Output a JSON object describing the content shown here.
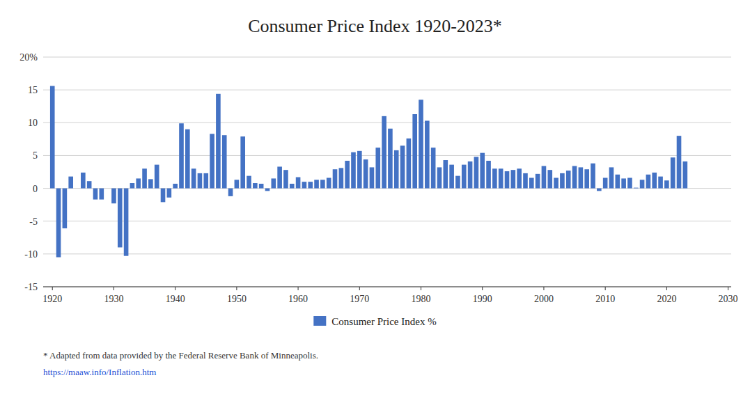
{
  "chart_data": {
    "type": "bar",
    "title": "Consumer Price Index 1920-2023*",
    "x": [
      1920,
      1921,
      1922,
      1923,
      1924,
      1925,
      1926,
      1927,
      1928,
      1929,
      1930,
      1931,
      1932,
      1933,
      1934,
      1935,
      1936,
      1937,
      1938,
      1939,
      1940,
      1941,
      1942,
      1943,
      1944,
      1945,
      1946,
      1947,
      1948,
      1949,
      1950,
      1951,
      1952,
      1953,
      1954,
      1955,
      1956,
      1957,
      1958,
      1959,
      1960,
      1961,
      1962,
      1963,
      1964,
      1965,
      1966,
      1967,
      1968,
      1969,
      1970,
      1971,
      1972,
      1973,
      1974,
      1975,
      1976,
      1977,
      1978,
      1979,
      1980,
      1981,
      1982,
      1983,
      1984,
      1985,
      1986,
      1987,
      1988,
      1989,
      1990,
      1991,
      1992,
      1993,
      1994,
      1995,
      1996,
      1997,
      1998,
      1999,
      2000,
      2001,
      2002,
      2003,
      2004,
      2005,
      2006,
      2007,
      2008,
      2009,
      2010,
      2011,
      2012,
      2013,
      2014,
      2015,
      2016,
      2017,
      2018,
      2019,
      2020,
      2021,
      2022,
      2023
    ],
    "series": [
      {
        "name": "Consumer Price Index %",
        "color": "#4472C4",
        "values": [
          15.6,
          -10.5,
          -6.1,
          1.8,
          0.0,
          2.4,
          1.1,
          -1.7,
          -1.7,
          0.0,
          -2.3,
          -9.0,
          -10.3,
          0.8,
          1.5,
          3.0,
          1.4,
          3.6,
          -2.1,
          -1.4,
          0.7,
          9.9,
          9.0,
          3.0,
          2.3,
          2.3,
          8.3,
          14.4,
          8.1,
          -1.2,
          1.3,
          7.9,
          1.9,
          0.8,
          0.7,
          -0.4,
          1.5,
          3.3,
          2.8,
          0.7,
          1.7,
          1.0,
          1.0,
          1.3,
          1.3,
          1.6,
          2.9,
          3.1,
          4.2,
          5.5,
          5.7,
          4.4,
          3.2,
          6.2,
          11.0,
          9.1,
          5.8,
          6.5,
          7.6,
          11.3,
          13.5,
          10.3,
          6.2,
          3.2,
          4.3,
          3.6,
          1.9,
          3.6,
          4.1,
          4.8,
          5.4,
          4.2,
          3.0,
          3.0,
          2.6,
          2.8,
          3.0,
          2.3,
          1.6,
          2.2,
          3.4,
          2.8,
          1.6,
          2.3,
          2.7,
          3.4,
          3.2,
          2.9,
          3.8,
          -0.4,
          1.6,
          3.2,
          2.1,
          1.5,
          1.6,
          0.1,
          1.3,
          2.1,
          2.4,
          1.8,
          1.2,
          4.7,
          8.0,
          4.1
        ]
      }
    ],
    "xlim": [
      1918.5,
      2030.5
    ],
    "xticks": [
      1920,
      1930,
      1940,
      1950,
      1960,
      1970,
      1980,
      1990,
      2000,
      2010,
      2020,
      2030
    ],
    "ylim": [
      -15,
      20
    ],
    "yticks": [
      -15,
      -10,
      -5,
      0,
      5,
      10,
      15,
      {
        "value": 20,
        "label": "20%"
      }
    ],
    "grid": true,
    "legend": "bottom",
    "annotations": [
      "* Adapted from data provided by the Federal Reserve Bank of Minneapolis.",
      "https://maaw.info/Inflation.htm"
    ]
  }
}
